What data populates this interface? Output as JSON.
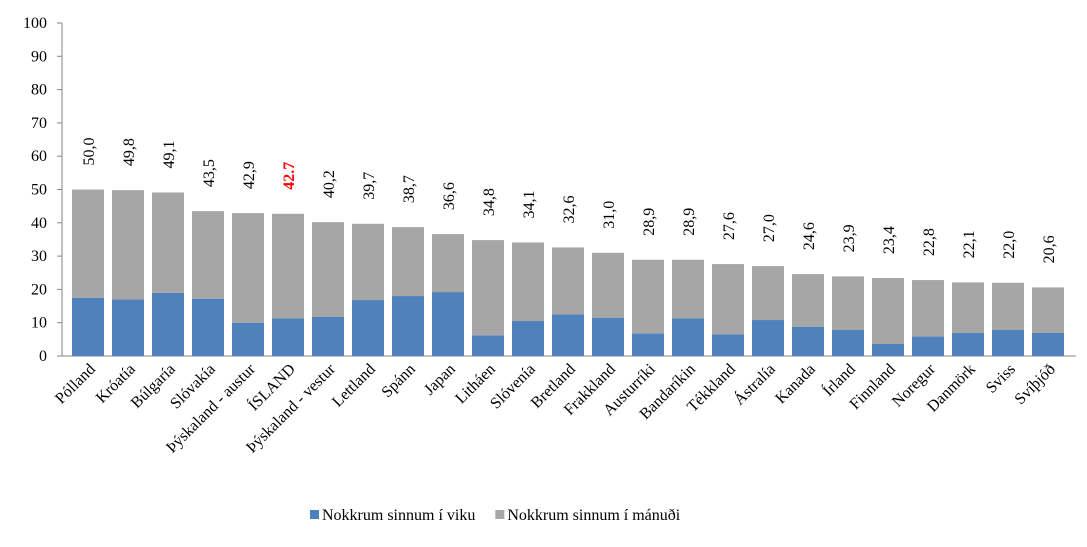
{
  "chart_data": {
    "type": "stacked_bar",
    "categories": [
      "Pólland",
      "Króatía",
      "Búlgaría",
      "Slóvakía",
      "Þýskaland - austur",
      "ÍSLAND",
      "Þýskaland - vestur",
      "Lettland",
      "Spánn",
      "Japan",
      "Litháen",
      "Slóvenía",
      "Bretland",
      "Frakkland",
      "Austurríki",
      "Bandaríkin",
      "Tékkland",
      "Ástralía",
      "Kanada",
      "Írland",
      "Finnland",
      "Noregur",
      "Danmörk",
      "Sviss",
      "Svíþjóð"
    ],
    "series": [
      {
        "name": "Nokkrum sinnum í viku",
        "color": "#4f81bd",
        "values": [
          17.5,
          17,
          19,
          17.2,
          10,
          11.3,
          11.8,
          16.8,
          18,
          19.2,
          6.2,
          10.5,
          12.5,
          11.5,
          6.8,
          11.3,
          6.5,
          10.8,
          8.8,
          7.8,
          3.6,
          5.9,
          6.9,
          7.8,
          7.0
        ]
      },
      {
        "name": "Nokkrum sinnum í mánuði",
        "color": "#a6a6a6",
        "values": [
          32.5,
          32.8,
          30.1,
          26.3,
          32.9,
          31.4,
          28.4,
          22.9,
          20.7,
          17.4,
          28.6,
          23.6,
          20.1,
          19.5,
          22.1,
          17.6,
          21.1,
          16.2,
          15.8,
          16.1,
          19.8,
          16.9,
          15.2,
          14.2,
          13.6
        ]
      }
    ],
    "total_labels": [
      "50,0",
      "49,8",
      "49,1",
      "43,5",
      "42,9",
      "42.7",
      "40,2",
      "39,7",
      "38,7",
      "36,6",
      "34,8",
      "34,1",
      "32,6",
      "31,0",
      "28,9",
      "28,9",
      "27,6",
      "27,0",
      "24,6",
      "23,9",
      "23,4",
      "22,8",
      "22,1",
      "22,0",
      "20,6"
    ],
    "highlight": {
      "index": 5,
      "color": "#ff0000"
    },
    "ylim": [
      0,
      100
    ],
    "yticks": [
      0,
      10,
      20,
      30,
      40,
      50,
      60,
      70,
      80,
      90,
      100
    ],
    "grid": false,
    "legend": "bottom"
  }
}
